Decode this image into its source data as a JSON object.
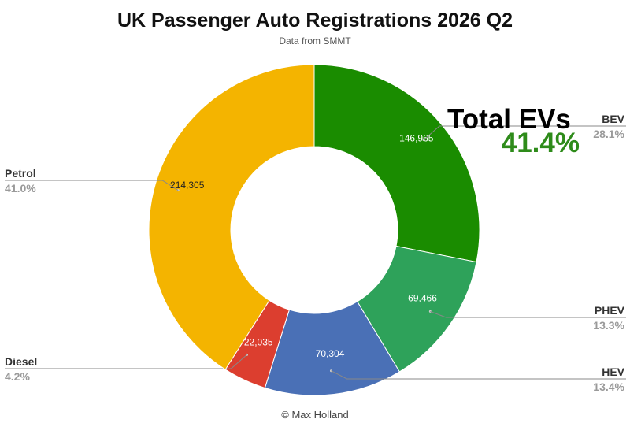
{
  "title": "UK Passenger Auto Registrations 2026 Q2",
  "subtitle": "Data from SMMT",
  "callout": {
    "title": "Total EVs",
    "value": "41.4%"
  },
  "credit": "© Max Holland",
  "chart_data": {
    "type": "pie",
    "donut": true,
    "title": "UK Passenger Auto Registrations 2026 Q2",
    "subtitle": "Data from SMMT",
    "slices": [
      {
        "label": "BEV",
        "value": 146965,
        "value_label": "146,965",
        "percent": "28.1%",
        "color": "#1a8c00"
      },
      {
        "label": "PHEV",
        "value": 69466,
        "value_label": "69,466",
        "percent": "13.3%",
        "color": "#2ea25a"
      },
      {
        "label": "HEV",
        "value": 70304,
        "value_label": "70,304",
        "percent": "13.4%",
        "color": "#4a70b6"
      },
      {
        "label": "Diesel",
        "value": 22035,
        "value_label": "22,035",
        "percent": "4.2%",
        "color": "#dc3e2f"
      },
      {
        "label": "Petrol",
        "value": 214305,
        "value_label": "214,305",
        "percent": "41.0%",
        "color": "#f4b400"
      }
    ]
  }
}
